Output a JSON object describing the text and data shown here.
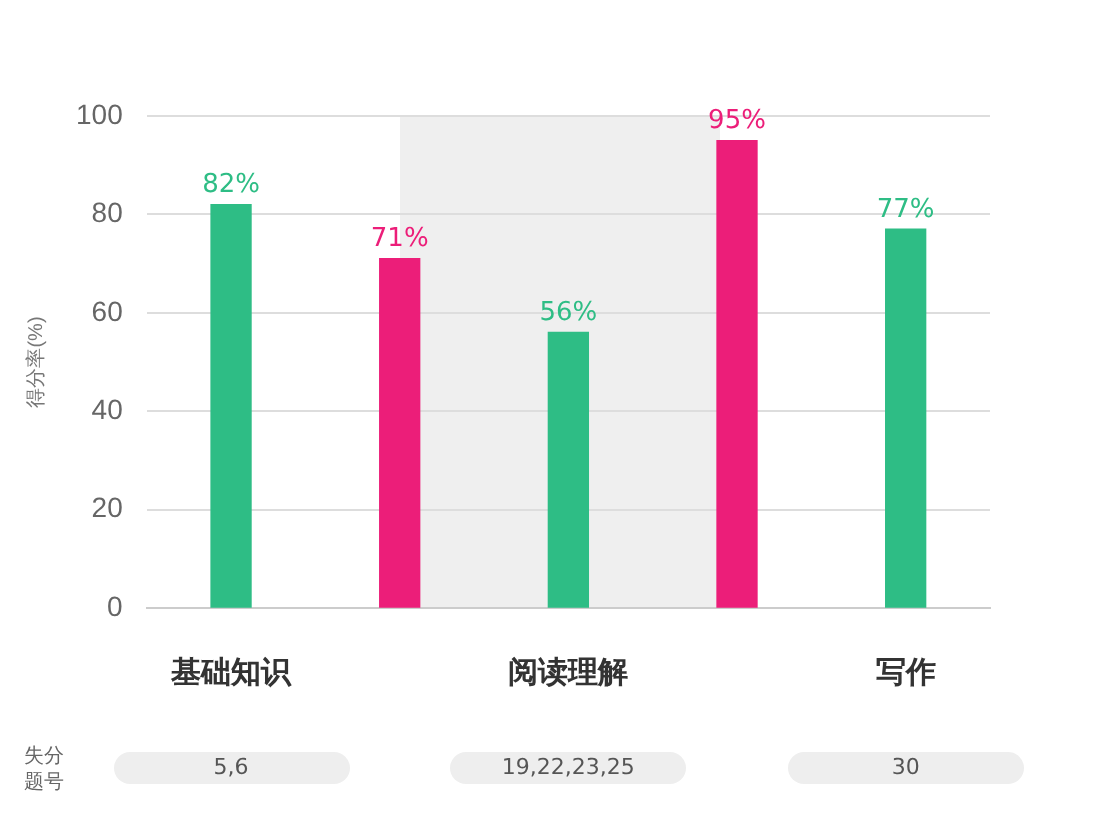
{
  "chart_data": {
    "type": "bar",
    "ylabel": "得分率(%)",
    "categories": [
      "基础知识",
      null,
      "阅读理解",
      null,
      "写作"
    ],
    "values": [
      82,
      71,
      56,
      95,
      77
    ],
    "colors": [
      "#2ebd85",
      "#ec1e79",
      "#2ebd85",
      "#ec1e79",
      "#2ebd85"
    ],
    "value_labels": [
      "82%",
      "71%",
      "56%",
      "95%",
      "77%"
    ],
    "ylim": [
      0,
      100
    ],
    "yticks": [
      0,
      20,
      40,
      60,
      80,
      100
    ],
    "grid": "y",
    "legend": false,
    "annotations": [
      "失分题号",
      "5,6",
      "19,22,23,25",
      "30"
    ]
  }
}
